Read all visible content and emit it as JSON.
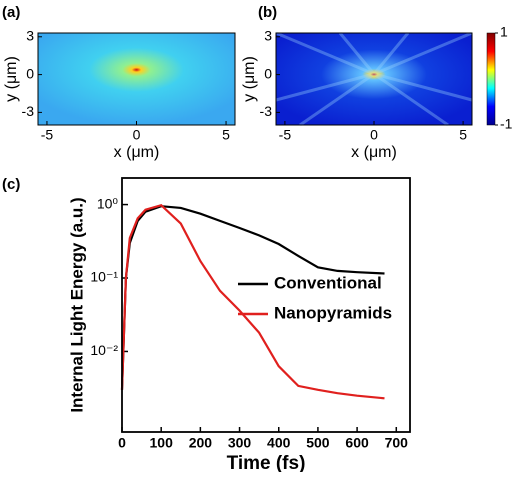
{
  "chart_data": [
    {
      "type": "heatmap",
      "label": "(a)",
      "xlabel": "x (μm)",
      "ylabel": "y (μm)",
      "xlim": [
        -5.5,
        5.5
      ],
      "xticks": [
        -5,
        0,
        5
      ],
      "ylim": [
        -4,
        3.3
      ],
      "yticks": [
        3,
        0,
        -3
      ]
    },
    {
      "type": "heatmap",
      "label": "(b)",
      "xlabel": "x (μm)",
      "ylabel": "y (μm)",
      "xlim": [
        -5.5,
        5.5
      ],
      "xticks": [
        -5,
        0,
        5
      ],
      "ylim": [
        -4,
        3.3
      ],
      "yticks": [
        3,
        0,
        -3
      ],
      "colorbar": {
        "lim": [
          -1,
          1
        ],
        "ticks": [
          1,
          -1
        ]
      }
    },
    {
      "type": "line",
      "label": "(c)",
      "xlabel": "Time (fs)",
      "ylabel": "Internal Light Energy (a.u.)",
      "log_y": true,
      "xlim": [
        0,
        735
      ],
      "xticks": [
        0,
        100,
        200,
        300,
        400,
        500,
        600,
        700
      ],
      "ylim": [
        0.0008,
        2.3
      ],
      "yticks": [
        {
          "value": 1,
          "label": "10⁰"
        },
        {
          "value": 0.1,
          "label": "10⁻¹"
        },
        {
          "value": 0.01,
          "label": "10⁻²"
        }
      ],
      "x": [
        0,
        10,
        20,
        40,
        60,
        100,
        150,
        200,
        250,
        300,
        350,
        400,
        450,
        500,
        550,
        600,
        670
      ],
      "series": [
        {
          "name": "Conventional",
          "color": "#000000",
          "values": [
            0.003,
            0.1,
            0.3,
            0.6,
            0.8,
            0.95,
            0.9,
            0.75,
            0.6,
            0.48,
            0.38,
            0.29,
            0.2,
            0.14,
            0.125,
            0.12,
            0.115
          ]
        },
        {
          "name": "Nanopyramids",
          "color": "#e0201e",
          "values": [
            0.003,
            0.1,
            0.35,
            0.65,
            0.85,
            0.98,
            0.55,
            0.17,
            0.067,
            0.036,
            0.018,
            0.0063,
            0.0034,
            0.003,
            0.0027,
            0.0025,
            0.0023
          ]
        }
      ]
    }
  ]
}
